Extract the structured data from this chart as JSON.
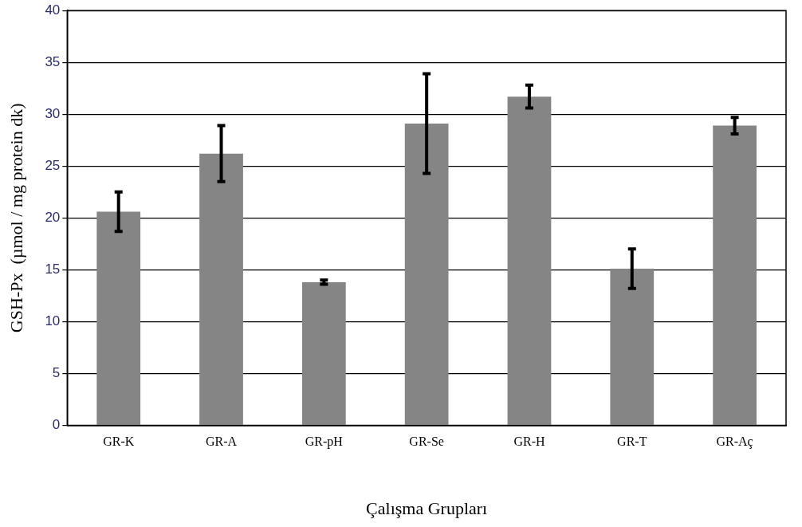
{
  "chart_data": {
    "type": "bar",
    "xlabel": "Çalışma Grupları",
    "ylabel": "GSH-Px  (µmol / mg protein dk)",
    "categories": [
      "GR-K",
      "GR-A",
      "GR-pH",
      "GR-Se",
      "GR-H",
      "GR-T",
      "GR-Aç"
    ],
    "values": [
      20.6,
      26.2,
      13.8,
      29.1,
      31.7,
      15.1,
      28.9
    ],
    "errors": [
      1.9,
      2.7,
      0.2,
      4.8,
      1.1,
      1.9,
      0.8
    ],
    "color": "#858585",
    "ylim": [
      0,
      40
    ],
    "yticks": [
      0,
      5,
      10,
      15,
      20,
      25,
      30,
      35,
      40
    ],
    "grid": "y"
  }
}
